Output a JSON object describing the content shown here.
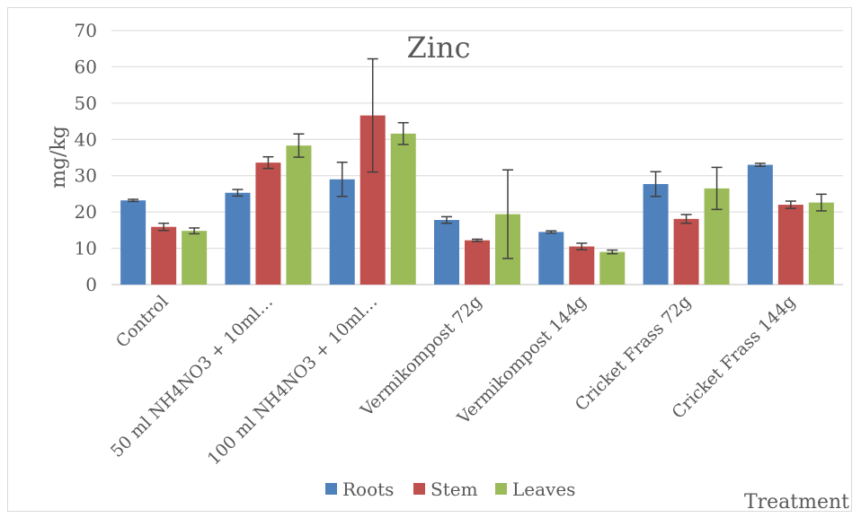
{
  "chart_data": {
    "type": "bar",
    "title": "Zinc",
    "ylabel": "mg/kg",
    "xlabel": "Treatment",
    "ylim": [
      0,
      70
    ],
    "yticks": [
      0,
      10,
      20,
      30,
      40,
      50,
      60,
      70
    ],
    "grid": true,
    "legend_position": "bottom",
    "categories": [
      "Control",
      "50 ml NH4NO3 + 10ml…",
      "100 ml NH4NO3 + 10ml…",
      "Vermikompost 72g",
      "Vermikompost 144g",
      "Cricket Frass 72g",
      "Cricket Frass 144g"
    ],
    "series": [
      {
        "name": "Roots",
        "color": "#4f81bd",
        "values": [
          23.2,
          25.3,
          29.0,
          17.8,
          14.5,
          27.7,
          33.0
        ],
        "errors": [
          0.3,
          0.9,
          4.7,
          0.9,
          0.3,
          3.4,
          0.4
        ]
      },
      {
        "name": "Stem",
        "color": "#c0504d",
        "values": [
          15.9,
          33.6,
          46.6,
          12.2,
          10.5,
          18.1,
          22.0
        ],
        "errors": [
          1.0,
          1.6,
          15.6,
          0.3,
          0.9,
          1.2,
          1.0
        ]
      },
      {
        "name": "Leaves",
        "color": "#9bbb59",
        "values": [
          14.8,
          38.3,
          41.6,
          19.4,
          9.0,
          26.5,
          22.6
        ],
        "errors": [
          0.8,
          3.2,
          3.0,
          12.2,
          0.5,
          5.8,
          2.3
        ]
      }
    ]
  }
}
